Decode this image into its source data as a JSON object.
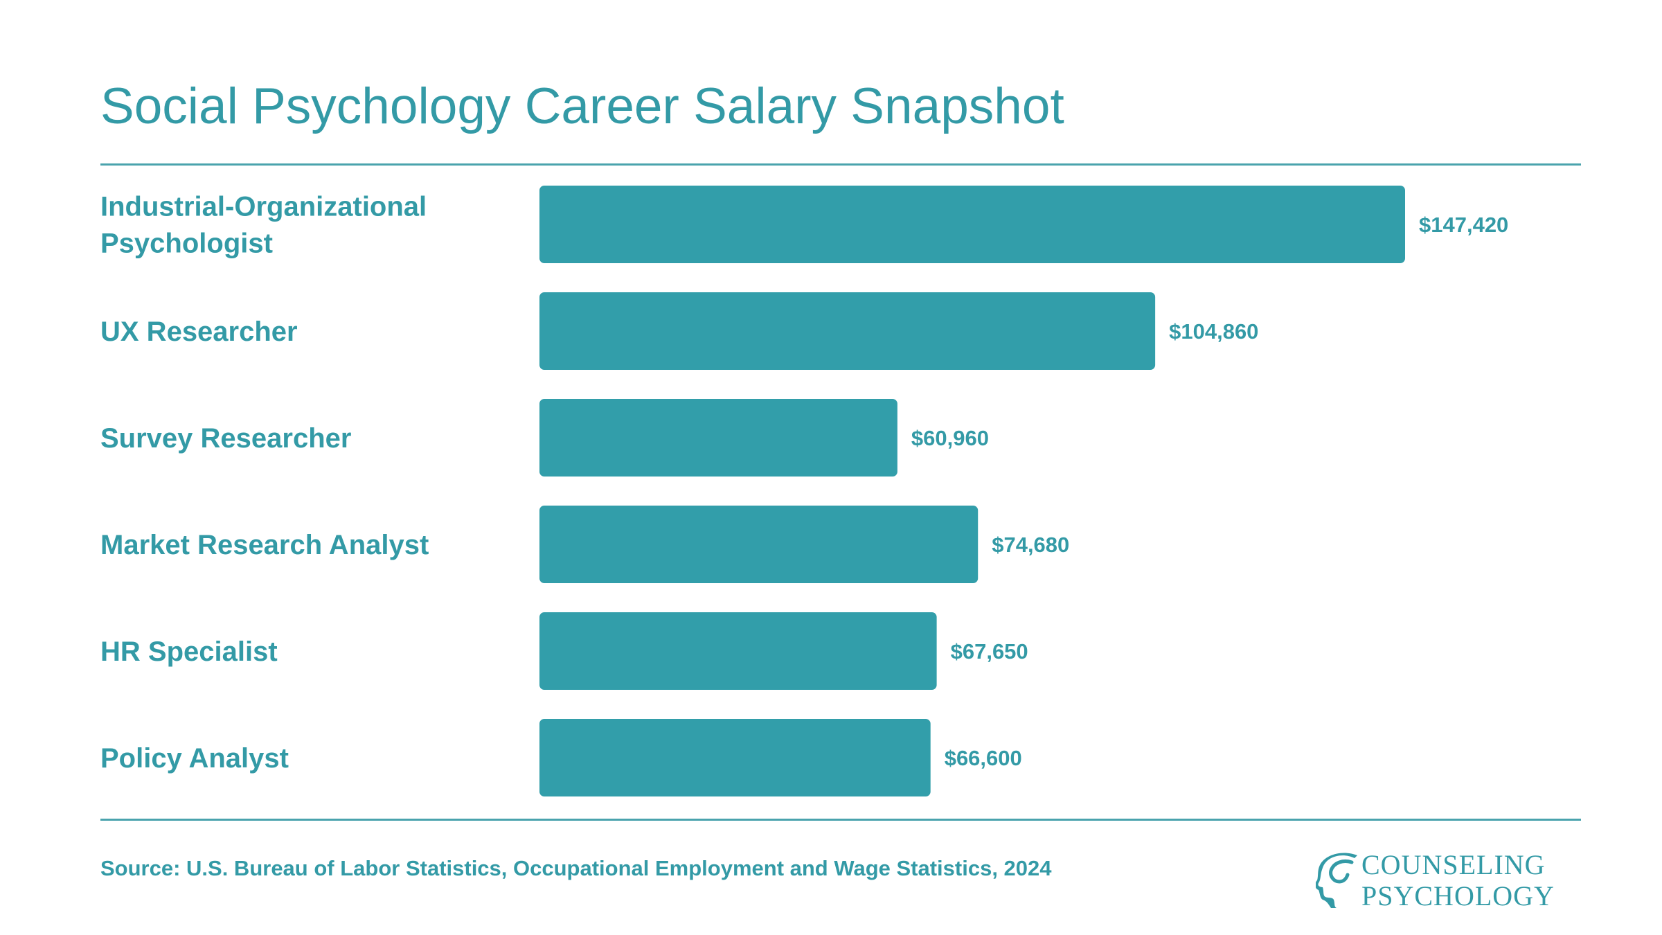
{
  "title": "Social Psychology Career Salary Snapshot",
  "source": "Source: U.S. Bureau of Labor Statistics, Occupational Employment and Wage Statistics, 2024",
  "logo": {
    "line1": "COUNSELING",
    "line2": "PSYCHOLOGY"
  },
  "colors": {
    "accent": "#339aa6",
    "bar": "#329eaa"
  },
  "chart_data": {
    "type": "bar",
    "orientation": "horizontal",
    "title": "Social Psychology Career Salary Snapshot",
    "xlabel": "",
    "ylabel": "",
    "categories": [
      [
        "Industrial-Organizational",
        "Psychologist"
      ],
      [
        "UX Researcher"
      ],
      [
        "Survey Researcher"
      ],
      [
        "Market Research Analyst"
      ],
      [
        "HR Specialist"
      ],
      [
        "Policy Analyst"
      ]
    ],
    "values": [
      147420,
      104860,
      60960,
      74680,
      67650,
      66600
    ],
    "value_labels": [
      "$147,420",
      "$104,860",
      "$60,960",
      "$74,680",
      "$67,650",
      "$66,600"
    ],
    "xlim": [
      0,
      147420
    ],
    "grid": false,
    "legend": "none"
  }
}
